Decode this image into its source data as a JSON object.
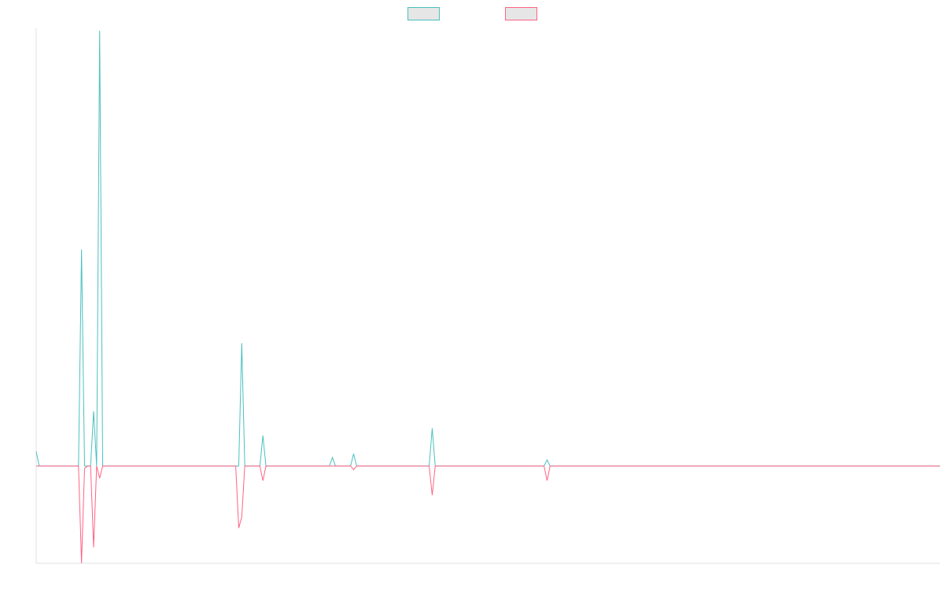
{
  "chart_data": {
    "type": "line",
    "x_count": 300,
    "ylim": [
      -8,
      36
    ],
    "grid": false,
    "legend_position": "top-center",
    "series": [
      {
        "color": "#4bc0c0",
        "fill": "#e6e6e6",
        "points": [
          [
            0,
            1.2
          ],
          [
            1,
            0
          ],
          [
            14,
            0
          ],
          [
            15,
            17.8
          ],
          [
            16,
            0
          ],
          [
            17,
            0
          ],
          [
            18,
            0
          ],
          [
            19,
            4.5
          ],
          [
            20,
            0
          ],
          [
            21,
            35.8
          ],
          [
            22,
            0
          ],
          [
            66,
            0
          ],
          [
            67,
            0
          ],
          [
            68,
            10.1
          ],
          [
            69,
            0
          ],
          [
            74,
            0
          ],
          [
            75,
            2.5
          ],
          [
            76,
            0
          ],
          [
            97,
            0
          ],
          [
            98,
            0.7
          ],
          [
            99,
            0
          ],
          [
            104,
            0
          ],
          [
            105,
            1.0
          ],
          [
            106,
            0
          ],
          [
            130,
            0
          ],
          [
            131,
            3.1
          ],
          [
            132,
            0
          ],
          [
            168,
            0
          ],
          [
            169,
            0.5
          ],
          [
            170,
            0
          ],
          [
            299,
            0
          ]
        ]
      },
      {
        "color": "#ff6384",
        "fill": "#e6e6e6",
        "points": [
          [
            0,
            0
          ],
          [
            14,
            0
          ],
          [
            15,
            -8.0
          ],
          [
            16,
            -0.2
          ],
          [
            17,
            0
          ],
          [
            18,
            0
          ],
          [
            19,
            -6.7
          ],
          [
            20,
            0
          ],
          [
            21,
            -1.0
          ],
          [
            22,
            0
          ],
          [
            66,
            0
          ],
          [
            67,
            -5.1
          ],
          [
            68,
            -4.2
          ],
          [
            69,
            0
          ],
          [
            74,
            0
          ],
          [
            75,
            -1.2
          ],
          [
            76,
            0
          ],
          [
            97,
            0
          ],
          [
            98,
            0
          ],
          [
            104,
            0
          ],
          [
            105,
            -0.3
          ],
          [
            106,
            0
          ],
          [
            130,
            0
          ],
          [
            131,
            -2.4
          ],
          [
            132,
            0
          ],
          [
            168,
            0
          ],
          [
            169,
            -1.2
          ],
          [
            170,
            0
          ],
          [
            299,
            0
          ]
        ]
      }
    ]
  }
}
